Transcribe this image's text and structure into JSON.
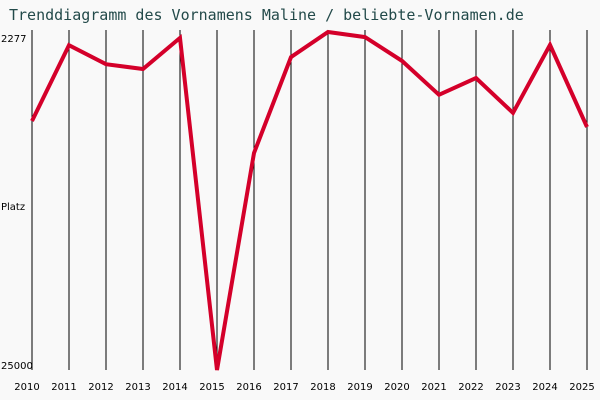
{
  "title": "Trenddiagramm des Vornamens Maline / beliebte-Vornamen.de",
  "y_axis": {
    "label": "Platz",
    "top_tick": "2277",
    "bottom_tick": "25000"
  },
  "colors": {
    "line": "#d4002a",
    "grid": "#000000",
    "background": "#f9f9f9",
    "title": "#234a4a"
  },
  "chart_data": {
    "type": "line",
    "title": "Trenddiagramm des Vornamens Maline / beliebte-Vornamen.de",
    "xlabel": "",
    "ylabel": "Platz",
    "ylim": [
      25000,
      2277
    ],
    "y_scale": "log (inverted rank)",
    "grid": "vertical lines per year",
    "categories": [
      "2010",
      "2011",
      "2012",
      "2013",
      "2014",
      "2015",
      "2016",
      "2017",
      "2018",
      "2019",
      "2020",
      "2021",
      "2022",
      "2023",
      "2024",
      "2025"
    ],
    "series": [
      {
        "name": "Maline",
        "values": [
          4280,
          2500,
          2860,
          2960,
          2375,
          25000,
          5370,
          2720,
          2277,
          2360,
          2795,
          3555,
          3155,
          4040,
          2495,
          4465
        ]
      }
    ]
  }
}
